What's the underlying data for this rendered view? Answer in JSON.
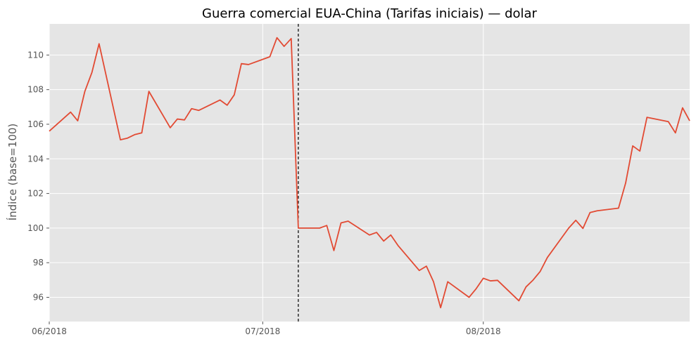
{
  "chart_data": {
    "type": "line",
    "title": "Guerra comercial EUA-China (Tarifas iniciais) — dolar",
    "xlabel": "",
    "ylabel": "Índice (base=100)",
    "x_tick_labels": [
      "06/2018",
      "07/2018",
      "08/2018"
    ],
    "x_ticks": [
      "2018-06-01",
      "2018-07-01",
      "2018-08-01"
    ],
    "xlim": [
      "2018-06-01",
      "2018-08-30"
    ],
    "ylim": [
      94.6,
      111.8
    ],
    "y_ticks": [
      96,
      98,
      100,
      102,
      104,
      106,
      108,
      110
    ],
    "grid": true,
    "event_date": "2018-07-06",
    "colors": {
      "line": "#E24A33",
      "plot_background": "#E5E5E5",
      "grid": "#FFFFFF",
      "event_line": "#000000"
    },
    "series": [
      {
        "x": [
          "2018-06-01",
          "2018-06-04",
          "2018-06-05",
          "2018-06-06",
          "2018-06-07",
          "2018-06-08",
          "2018-06-11",
          "2018-06-12",
          "2018-06-13",
          "2018-06-14",
          "2018-06-15",
          "2018-06-18",
          "2018-06-19",
          "2018-06-20",
          "2018-06-21",
          "2018-06-22",
          "2018-06-25",
          "2018-06-26",
          "2018-06-27",
          "2018-06-28",
          "2018-06-29",
          "2018-07-02",
          "2018-07-03",
          "2018-07-04",
          "2018-07-05",
          "2018-07-06",
          "2018-07-09",
          "2018-07-10",
          "2018-07-11",
          "2018-07-12",
          "2018-07-13",
          "2018-07-16",
          "2018-07-17",
          "2018-07-18",
          "2018-07-19",
          "2018-07-20",
          "2018-07-23",
          "2018-07-24",
          "2018-07-25",
          "2018-07-26",
          "2018-07-27",
          "2018-07-30",
          "2018-07-31",
          "2018-08-01",
          "2018-08-02",
          "2018-08-03",
          "2018-08-06",
          "2018-08-07",
          "2018-08-08",
          "2018-08-09",
          "2018-08-10",
          "2018-08-13",
          "2018-08-14",
          "2018-08-15",
          "2018-08-16",
          "2018-08-17",
          "2018-08-20",
          "2018-08-21",
          "2018-08-22",
          "2018-08-23",
          "2018-08-24",
          "2018-08-27",
          "2018-08-28",
          "2018-08-29",
          "2018-08-30"
        ],
        "y": [
          105.6,
          106.7,
          106.2,
          107.9,
          109.0,
          110.65,
          105.1,
          105.2,
          105.4,
          105.5,
          107.9,
          105.8,
          106.3,
          106.25,
          106.9,
          106.8,
          107.4,
          107.1,
          107.7,
          109.5,
          109.45,
          109.9,
          111.0,
          110.5,
          110.95,
          100.0,
          100.0,
          100.15,
          98.7,
          100.3,
          100.4,
          99.6,
          99.75,
          99.25,
          99.6,
          99.0,
          97.55,
          97.8,
          96.9,
          95.4,
          96.9,
          96.0,
          96.5,
          97.1,
          96.95,
          96.98,
          95.8,
          96.6,
          97.0,
          97.5,
          98.3,
          100.0,
          100.45,
          99.98,
          100.9,
          101.0,
          101.15,
          102.6,
          104.75,
          104.45,
          106.4,
          106.15,
          105.5,
          106.95,
          106.2
        ]
      }
    ]
  }
}
